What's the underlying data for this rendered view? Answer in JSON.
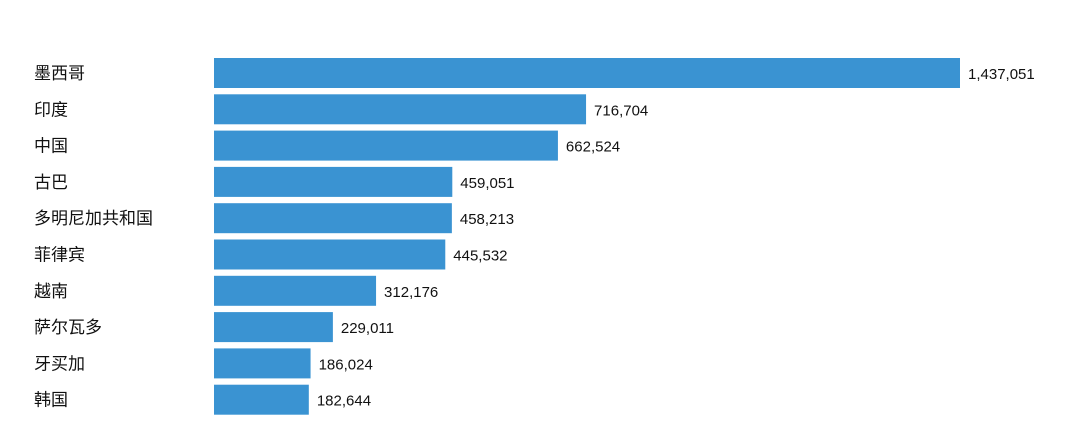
{
  "chart_data": {
    "type": "bar",
    "orientation": "horizontal",
    "categories": [
      "墨西哥",
      "印度",
      "中国",
      "古巴",
      "多明尼加共和国",
      "菲律宾",
      "越南",
      "萨尔瓦多",
      "牙买加",
      "韩国"
    ],
    "values": [
      1437051,
      716704,
      662524,
      459051,
      458213,
      445532,
      312176,
      229011,
      186024,
      182644
    ],
    "value_labels": [
      "1,437,051",
      "716,704",
      "662,524",
      "459,051",
      "458,213",
      "445,532",
      "312,176",
      "229,011",
      "186,024",
      "182,644"
    ],
    "title": "",
    "xlabel": "",
    "ylabel": "",
    "xlim": [
      0,
      1437051
    ],
    "grid": false,
    "bar_color": "#3a93d2"
  }
}
